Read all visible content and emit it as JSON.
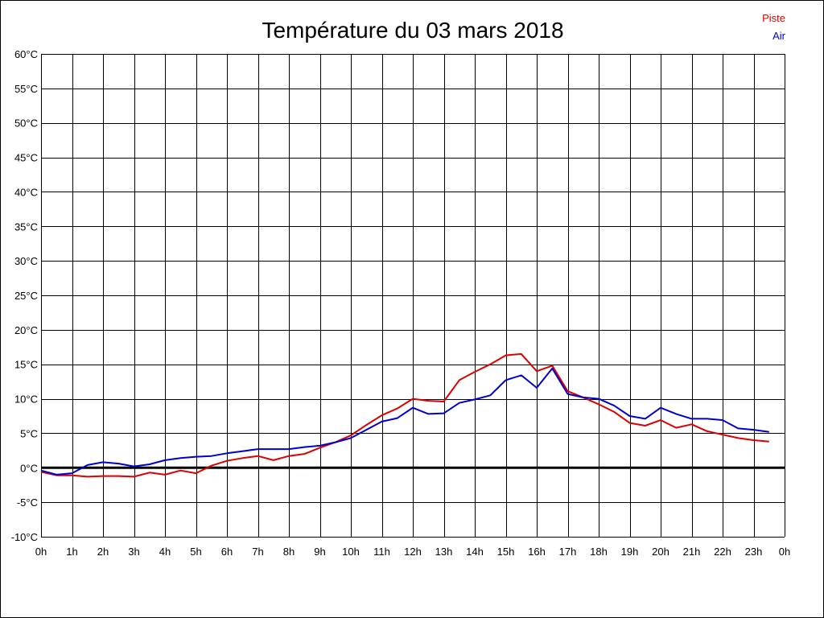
{
  "chart_data": {
    "type": "line",
    "title": "Température du 03 mars 2018",
    "xlabel": "",
    "ylabel": "",
    "x_ticks": [
      "0h",
      "1h",
      "2h",
      "3h",
      "4h",
      "5h",
      "6h",
      "7h",
      "8h",
      "9h",
      "10h",
      "11h",
      "12h",
      "13h",
      "14h",
      "15h",
      "16h",
      "17h",
      "18h",
      "19h",
      "20h",
      "21h",
      "22h",
      "23h",
      "0h"
    ],
    "y_ticks": [
      "-10°C",
      "-5°C",
      "0°C",
      "5°C",
      "10°C",
      "15°C",
      "20°C",
      "25°C",
      "30°C",
      "35°C",
      "40°C",
      "45°C",
      "50°C",
      "55°C",
      "60°C"
    ],
    "ylim": [
      -10,
      60
    ],
    "xlim": [
      0,
      24
    ],
    "grid": true,
    "legend_position": "top-right",
    "zero_line": true,
    "x": [
      0,
      0.5,
      1,
      1.5,
      2,
      2.5,
      3,
      3.5,
      4,
      4.5,
      5,
      5.5,
      6,
      6.5,
      7,
      7.5,
      8,
      8.5,
      9,
      9.5,
      10,
      10.5,
      11,
      11.5,
      12,
      12.5,
      13,
      13.5,
      14,
      14.5,
      15,
      15.5,
      16,
      16.5,
      17,
      17.5,
      18,
      18.5,
      19,
      19.5,
      20,
      20.5,
      21,
      21.5,
      22,
      22.5,
      23,
      23.5
    ],
    "series": [
      {
        "name": "Piste",
        "color": "#dd0000",
        "values": [
          -0.6,
          -1.1,
          -1.1,
          -1.3,
          -1.2,
          -1.2,
          -1.3,
          -0.7,
          -1.0,
          -0.4,
          -0.8,
          0.3,
          1.0,
          1.4,
          1.7,
          1.1,
          1.7,
          2.0,
          2.9,
          3.7,
          4.7,
          6.2,
          7.6,
          8.6,
          10.0,
          9.7,
          9.6,
          12.7,
          13.9,
          15.0,
          16.3,
          16.5,
          14.0,
          14.8,
          11.1,
          10.2,
          9.2,
          8.1,
          6.5,
          6.1,
          6.9,
          5.8,
          6.3,
          5.3,
          4.8,
          4.3,
          4.0,
          3.8
        ]
      },
      {
        "name": "Air",
        "color": "#0000cc",
        "values": [
          -0.4,
          -1.0,
          -0.8,
          0.4,
          0.8,
          0.6,
          0.2,
          0.5,
          1.1,
          1.4,
          1.6,
          1.7,
          2.1,
          2.4,
          2.7,
          2.7,
          2.7,
          3.0,
          3.2,
          3.7,
          4.3,
          5.5,
          6.7,
          7.2,
          8.7,
          7.8,
          7.9,
          9.4,
          9.9,
          10.5,
          12.7,
          13.4,
          11.6,
          14.4,
          10.7,
          10.2,
          10.0,
          9.0,
          7.5,
          7.1,
          8.7,
          7.8,
          7.1,
          7.1,
          6.9,
          5.7,
          5.5,
          5.2
        ]
      }
    ],
    "colors": {
      "grid": "#000000",
      "zero_line": "#000000",
      "background": "#ffffff"
    }
  }
}
